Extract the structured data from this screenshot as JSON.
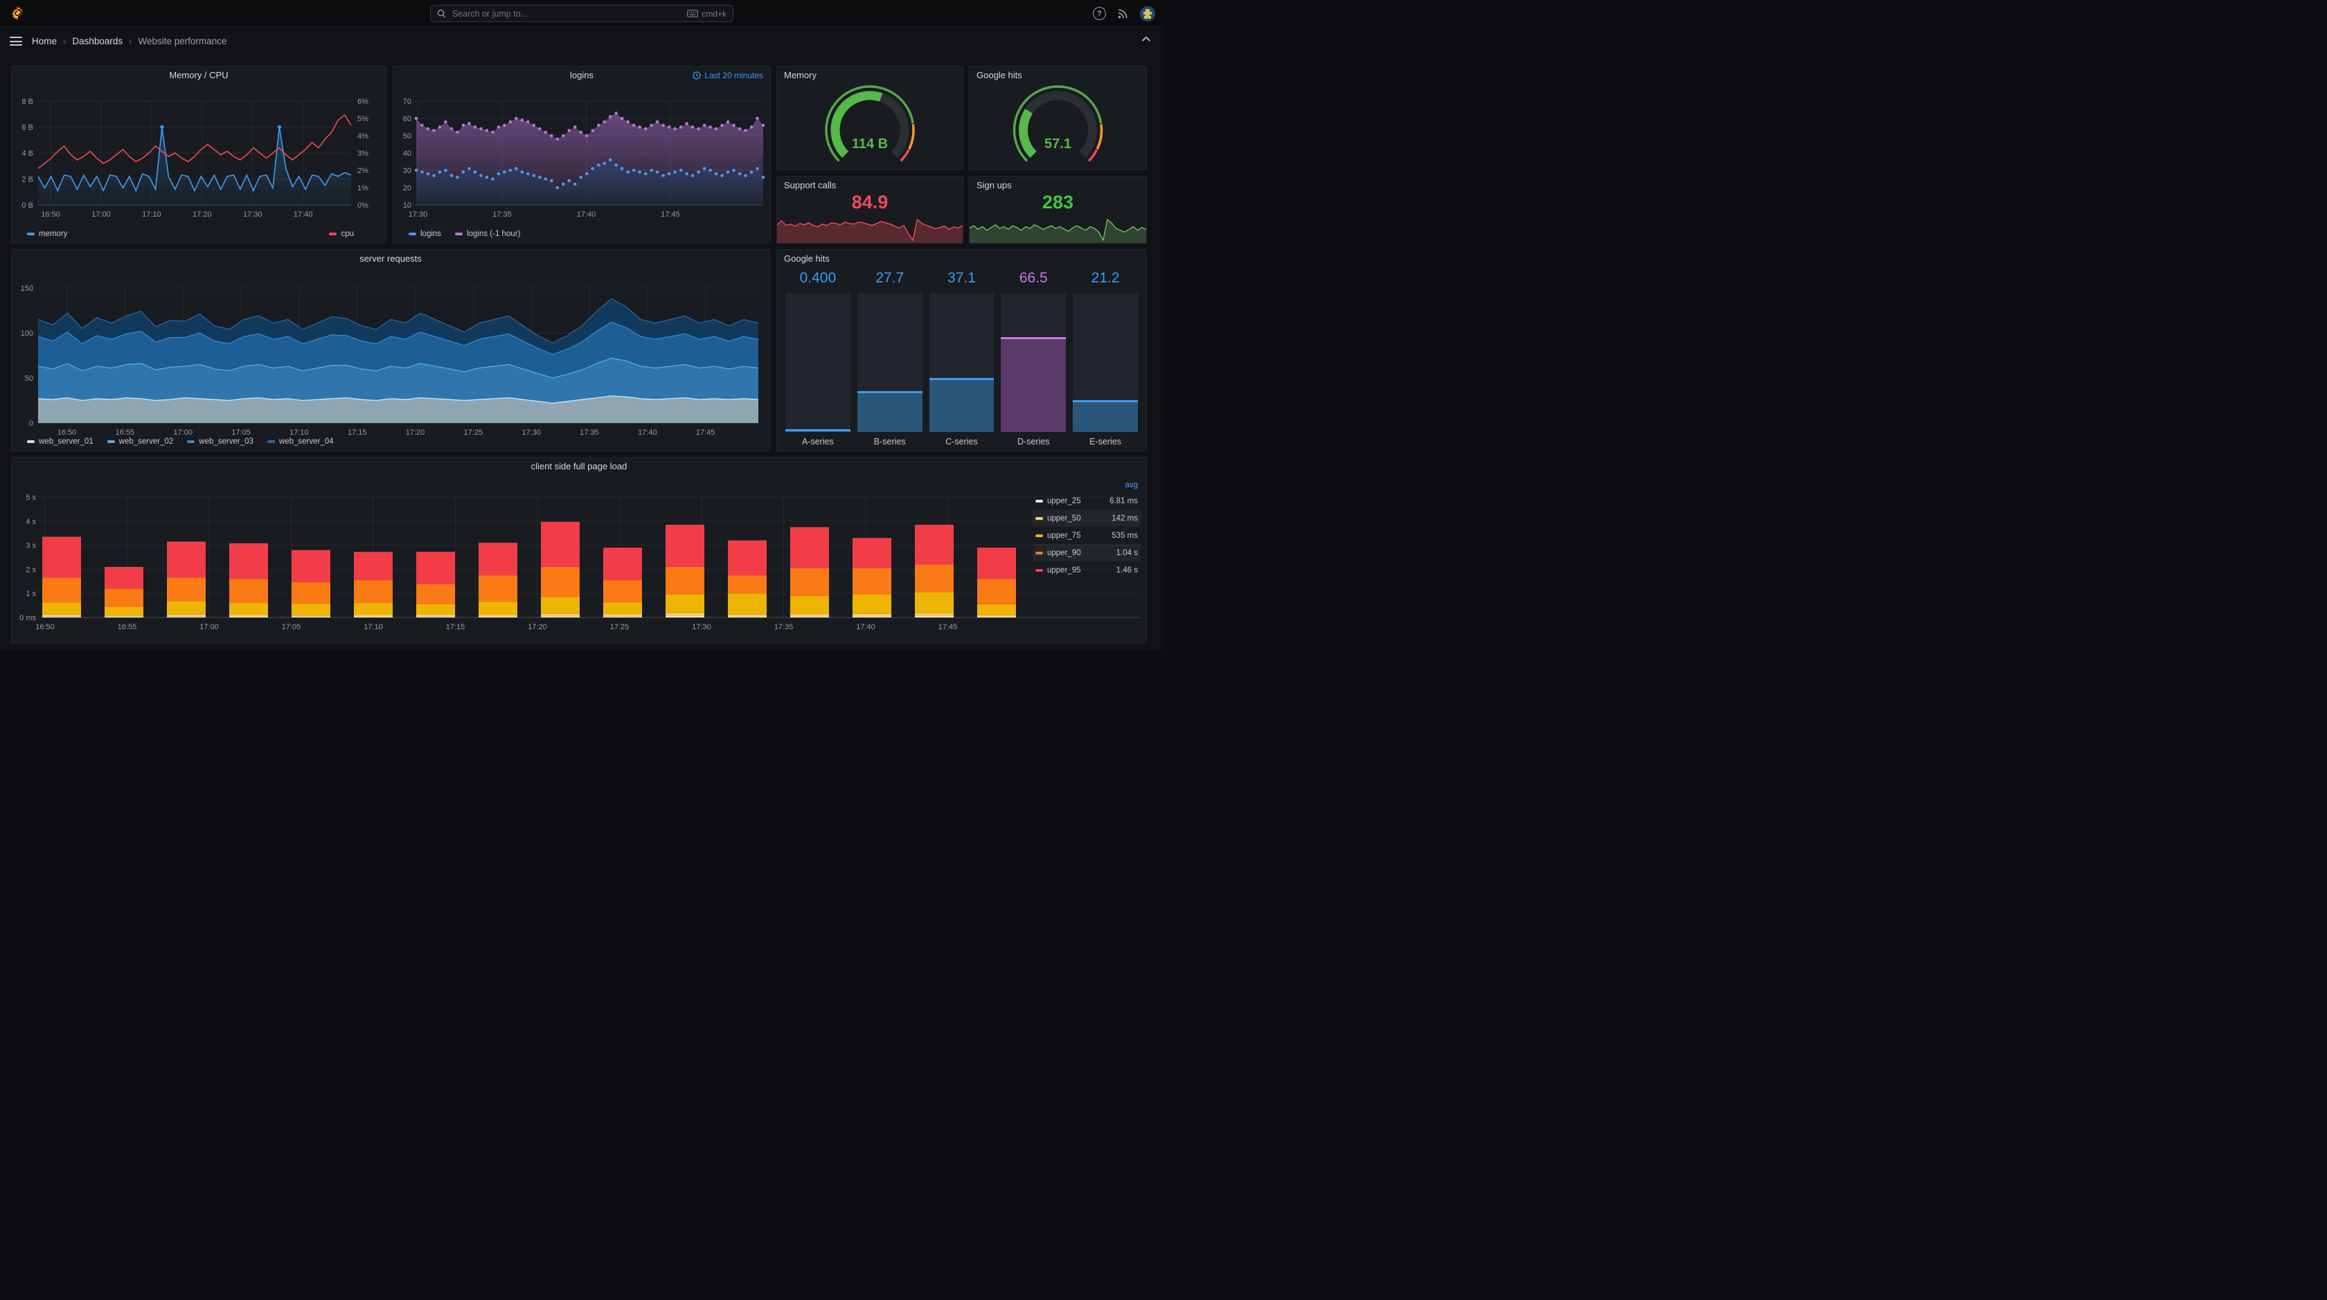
{
  "topnav": {
    "search_placeholder": "Search or jump to...",
    "shortcut": "cmd+k",
    "help_glyph": "?"
  },
  "breadcrumb": {
    "items": [
      "Home",
      "Dashboards",
      "Website performance"
    ],
    "separator": "›"
  },
  "chart_data": [
    {
      "id": "memory_cpu",
      "type": "line",
      "title": "Memory / CPU",
      "x_labels": [
        "16:50",
        "17:00",
        "17:10",
        "17:20",
        "17:30",
        "17:40"
      ],
      "y_left": {
        "ticks": [
          "8 B",
          "6 B",
          "4 B",
          "2 B",
          "0 B"
        ],
        "min": 0,
        "max": 8
      },
      "y_right": {
        "ticks": [
          "6%",
          "5%",
          "4%",
          "3%",
          "2%",
          "1%",
          "0%"
        ],
        "min": 0,
        "max": 6
      },
      "legend_position": "bottom",
      "series": [
        {
          "name": "memory",
          "color": "#3d9df3",
          "axis": "left",
          "values": [
            2.2,
            1.3,
            2.2,
            1.1,
            2.3,
            2.2,
            1.2,
            2.3,
            1.4,
            2.2,
            1.1,
            2.3,
            2.2,
            1.3,
            2.2,
            1.1,
            2.4,
            2.2,
            1.2,
            6,
            2.2,
            1.2,
            2.3,
            2.2,
            1.1,
            2.2,
            1.4,
            2.3,
            1.2,
            2.2,
            2.3,
            1.2,
            2.3,
            1.1,
            2.2,
            2.3,
            1.3,
            6,
            2.8,
            1.4,
            2.2,
            1.2,
            2.3,
            2.2,
            1.5,
            2.4,
            2.2,
            2.5,
            2.3
          ]
        },
        {
          "name": "cpu",
          "color": "#f2495c",
          "axis": "right",
          "values": [
            2.1,
            2.4,
            2.7,
            3.1,
            3.4,
            2.9,
            2.6,
            2.8,
            3.1,
            2.7,
            2.4,
            2.6,
            2.9,
            3.2,
            2.8,
            2.5,
            2.7,
            3,
            3.4,
            3.1,
            2.8,
            3,
            2.7,
            2.5,
            2.8,
            3.2,
            3.5,
            3.2,
            2.9,
            3.1,
            2.8,
            2.6,
            2.9,
            3.3,
            3,
            2.7,
            3,
            3.3,
            2.9,
            2.6,
            2.9,
            3.2,
            3.6,
            3.3,
            3.8,
            4.2,
            4.9,
            5.2,
            4.6
          ]
        }
      ]
    },
    {
      "id": "logins",
      "type": "scatter",
      "title": "logins",
      "time_range": "Last 20 minutes",
      "x_labels": [
        "17:30",
        "17:35",
        "17:40",
        "17:45"
      ],
      "y": {
        "ticks": [
          "70",
          "60",
          "50",
          "40",
          "30",
          "20",
          "10"
        ],
        "min": 10,
        "max": 70
      },
      "series": [
        {
          "name": "logins",
          "color": "#5794f2",
          "values": [
            30,
            29,
            28,
            27,
            29,
            30,
            27,
            26,
            29,
            31,
            29,
            27,
            26,
            25,
            28,
            29,
            30,
            31,
            29,
            28,
            27,
            26,
            25,
            24,
            20,
            22,
            24,
            22,
            26,
            28,
            31,
            33,
            34,
            36,
            33,
            31,
            29,
            30,
            29,
            28,
            30,
            29,
            27,
            28,
            29,
            30,
            28,
            27,
            29,
            31,
            30,
            28,
            27,
            29,
            30,
            28,
            27,
            29,
            31,
            26
          ]
        },
        {
          "name": "logins (-1 hour)",
          "color": "#b877d9",
          "values": [
            60,
            56,
            54,
            53,
            55,
            58,
            54,
            52,
            56,
            57,
            55,
            54,
            53,
            52,
            55,
            56,
            58,
            60,
            59,
            58,
            56,
            54,
            52,
            50,
            48,
            50,
            53,
            55,
            52,
            50,
            53,
            56,
            58,
            61,
            63,
            60,
            58,
            56,
            55,
            54,
            56,
            58,
            56,
            55,
            54,
            55,
            57,
            55,
            54,
            56,
            55,
            54,
            56,
            58,
            56,
            54,
            53,
            55,
            60,
            56
          ]
        }
      ]
    },
    {
      "id": "memory_gauge",
      "type": "gauge",
      "title": "Memory",
      "value": "114 B",
      "fill_fraction": 0.57,
      "color": "#56b94a",
      "threshold_colors": [
        "#56a64b",
        "#ff9830",
        "#f2495c"
      ]
    },
    {
      "id": "google_hits_gauge",
      "type": "gauge",
      "title": "Google hits",
      "value": "57.1",
      "fill_fraction": 0.29,
      "color": "#56b94a",
      "threshold_colors": [
        "#56a64b",
        "#ff9830",
        "#f2495c"
      ]
    },
    {
      "id": "support_calls",
      "type": "area",
      "title": "Support calls",
      "value": "84.9",
      "value_color": "#f2495c",
      "line_color": "#f2495c",
      "values": [
        75,
        88,
        74,
        78,
        72,
        80,
        76,
        82,
        74,
        70,
        78,
        74,
        82,
        80,
        76,
        84,
        80,
        78,
        84,
        82,
        78,
        74,
        80,
        86,
        82,
        78,
        72,
        66,
        74,
        50,
        30,
        92,
        80,
        74,
        70,
        64,
        68,
        72,
        62,
        70,
        66,
        74
      ]
    },
    {
      "id": "sign_ups",
      "type": "area",
      "title": "Sign ups",
      "value": "283",
      "value_color": "#3fc53f",
      "line_color": "#73bf69",
      "values": [
        55,
        60,
        52,
        58,
        50,
        56,
        62,
        54,
        58,
        52,
        60,
        56,
        50,
        58,
        54,
        62,
        58,
        52,
        56,
        60,
        54,
        58,
        52,
        48,
        56,
        60,
        54,
        50,
        58,
        54,
        46,
        28,
        74,
        66,
        54,
        50,
        46,
        52,
        58,
        50,
        56,
        52
      ]
    },
    {
      "id": "server_requests",
      "type": "area",
      "title": "server requests",
      "stacked": true,
      "x_labels": [
        "16:50",
        "16:55",
        "17:00",
        "17:05",
        "17:10",
        "17:15",
        "17:20",
        "17:25",
        "17:30",
        "17:35",
        "17:40",
        "17:45"
      ],
      "y": {
        "ticks": [
          "150",
          "100",
          "50",
          "0"
        ],
        "min": 0,
        "max": 150
      },
      "series": [
        {
          "name": "web_server_01",
          "fill": "#8fa6b2",
          "line": "#cfe6f2",
          "values": [
            27,
            26,
            28,
            25,
            27,
            26,
            28,
            27,
            25,
            26,
            28,
            27,
            26,
            25,
            27,
            28,
            26,
            27,
            25,
            26,
            27,
            28,
            26,
            25,
            27,
            26,
            28,
            27,
            26,
            25,
            26,
            27,
            28,
            26,
            24,
            22,
            24,
            26,
            28,
            30,
            29,
            27,
            26,
            27,
            28,
            26,
            27,
            26,
            27,
            26
          ]
        },
        {
          "name": "web_server_02",
          "fill": "#2e76ad",
          "line": "#58aae8",
          "values": [
            36,
            34,
            38,
            33,
            36,
            35,
            37,
            39,
            34,
            36,
            35,
            38,
            34,
            33,
            36,
            37,
            35,
            36,
            33,
            35,
            37,
            36,
            34,
            33,
            36,
            35,
            38,
            36,
            34,
            32,
            35,
            36,
            37,
            34,
            31,
            28,
            30,
            33,
            38,
            42,
            40,
            36,
            35,
            36,
            37,
            35,
            36,
            34,
            36,
            35
          ]
        },
        {
          "name": "web_server_03",
          "fill": "#1d5e95",
          "line": "#3787cf",
          "values": [
            33,
            31,
            35,
            30,
            34,
            32,
            34,
            36,
            31,
            33,
            32,
            35,
            31,
            30,
            33,
            34,
            32,
            33,
            30,
            32,
            34,
            33,
            31,
            30,
            33,
            32,
            35,
            33,
            31,
            29,
            32,
            33,
            34,
            31,
            28,
            26,
            28,
            31,
            36,
            40,
            37,
            33,
            32,
            33,
            34,
            32,
            33,
            31,
            33,
            32
          ]
        },
        {
          "name": "web_server_04",
          "fill": "#11395c",
          "line": "#2a66a5",
          "values": [
            19,
            18,
            21,
            17,
            20,
            18,
            20,
            22,
            17,
            19,
            18,
            21,
            17,
            16,
            19,
            20,
            18,
            19,
            16,
            18,
            20,
            19,
            17,
            16,
            19,
            18,
            21,
            19,
            17,
            15,
            18,
            19,
            20,
            17,
            14,
            13,
            15,
            18,
            22,
            26,
            23,
            19,
            18,
            19,
            20,
            18,
            19,
            17,
            19,
            18
          ]
        }
      ]
    },
    {
      "id": "google_hits_bars",
      "type": "bar",
      "title": "Google hits",
      "categories": [
        "A-series",
        "B-series",
        "C-series",
        "D-series",
        "E-series"
      ],
      "values": [
        0.4,
        27.7,
        37.1,
        66.5,
        21.2
      ],
      "display": [
        "0.400",
        "27.7",
        "37.1",
        "66.5",
        "21.2"
      ],
      "value_colors": [
        "#3d9bf5",
        "#3d9bf5",
        "#3d9bf5",
        "#c77ae6",
        "#3d9bf5"
      ],
      "fill_colors": [
        "#2a5779",
        "#2a5779",
        "#2a5779",
        "#5a3a68",
        "#2a5779"
      ],
      "cap_colors": [
        "#3d9bf5",
        "#3d9bf5",
        "#3d9bf5",
        "#ca79e8",
        "#3d9bf5"
      ],
      "max": 100
    },
    {
      "id": "client_load",
      "type": "bar",
      "stacked": true,
      "title": "client side full page load",
      "x_labels": [
        "16:50",
        "16:55",
        "17:00",
        "17:05",
        "17:10",
        "17:15",
        "17:20",
        "17:25",
        "17:30",
        "17:35",
        "17:40",
        "17:45"
      ],
      "y_ticks": [
        "5 s",
        "4 s",
        "3 s",
        "2 s",
        "1 s",
        "0 ms"
      ],
      "y_max": 5,
      "legend_header": "avg",
      "series": [
        {
          "name": "upper_25",
          "color": "#f7e6d5",
          "avg": "6.81 ms"
        },
        {
          "name": "upper_50",
          "color": "#f6cf71",
          "avg": "142 ms"
        },
        {
          "name": "upper_75",
          "color": "#eeb404",
          "avg": "535 ms"
        },
        {
          "name": "upper_90",
          "color": "#fa7a15",
          "avg": "1.04 s"
        },
        {
          "name": "upper_95",
          "color": "#f23d49",
          "avg": "1.46 s"
        }
      ],
      "bars_cumulative": [
        [
          0.05,
          0.12,
          0.62,
          1.65,
          3.35
        ],
        [
          0.03,
          0.08,
          0.45,
          1.2,
          2.1
        ],
        [
          0.05,
          0.12,
          0.68,
          1.65,
          3.15
        ],
        [
          0.04,
          0.1,
          0.6,
          1.6,
          3.08
        ],
        [
          0.03,
          0.08,
          0.58,
          1.47,
          2.8
        ],
        [
          0.04,
          0.1,
          0.6,
          1.55,
          2.72
        ],
        [
          0.05,
          0.12,
          0.55,
          1.38,
          2.73
        ],
        [
          0.04,
          0.1,
          0.65,
          1.75,
          3.1
        ],
        [
          0.05,
          0.15,
          0.85,
          2.1,
          3.97
        ],
        [
          0.05,
          0.14,
          0.63,
          1.55,
          2.9
        ],
        [
          0.06,
          0.18,
          0.95,
          2.1,
          3.85
        ],
        [
          0.04,
          0.12,
          1.0,
          1.75,
          3.2
        ],
        [
          0.05,
          0.13,
          0.9,
          2.05,
          3.75
        ],
        [
          0.05,
          0.15,
          0.95,
          2.05,
          3.3
        ],
        [
          0.06,
          0.17,
          1.05,
          2.2,
          3.85
        ],
        [
          0.03,
          0.09,
          0.55,
          1.6,
          2.9
        ]
      ]
    }
  ]
}
